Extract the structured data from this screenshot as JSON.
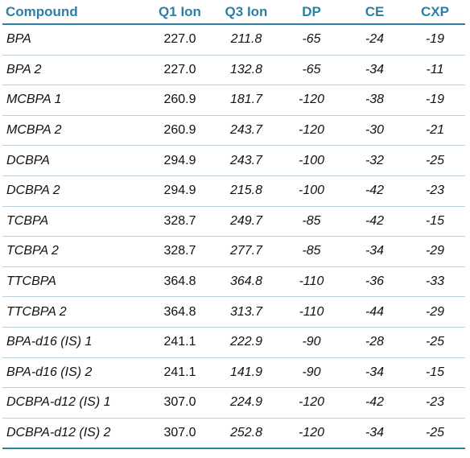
{
  "table": {
    "headers": [
      "Compound",
      "Q1 Ion",
      "Q3 Ion",
      "DP",
      "CE",
      "CXP"
    ],
    "rows": [
      [
        "BPA",
        "227.0",
        "211.8",
        "-65",
        "-24",
        "-19"
      ],
      [
        "BPA 2",
        "227.0",
        "132.8",
        "-65",
        "-34",
        "-11"
      ],
      [
        "MCBPA 1",
        "260.9",
        "181.7",
        "-120",
        "-38",
        "-19"
      ],
      [
        "MCBPA 2",
        "260.9",
        "243.7",
        "-120",
        "-30",
        "-21"
      ],
      [
        "DCBPA",
        "294.9",
        "243.7",
        "-100",
        "-32",
        "-25"
      ],
      [
        "DCBPA 2",
        "294.9",
        "215.8",
        "-100",
        "-42",
        "-23"
      ],
      [
        "TCBPA",
        "328.7",
        "249.7",
        "-85",
        "-42",
        "-15"
      ],
      [
        "TCBPA 2",
        "328.7",
        "277.7",
        "-85",
        "-34",
        "-29"
      ],
      [
        "TTCBPA",
        "364.8",
        "364.8",
        "-110",
        "-36",
        "-33"
      ],
      [
        "TTCBPA 2",
        "364.8",
        "313.7",
        "-110",
        "-44",
        "-29"
      ],
      [
        "BPA-d16 (IS) 1",
        "241.1",
        "222.9",
        "-90",
        "-28",
        "-25"
      ],
      [
        "BPA-d16 (IS) 2",
        "241.1",
        "141.9",
        "-90",
        "-34",
        "-15"
      ],
      [
        "DCBPA-d12 (IS) 1",
        "307.0",
        "224.9",
        "-120",
        "-42",
        "-23"
      ],
      [
        "DCBPA-d12 (IS) 2",
        "307.0",
        "252.8",
        "-120",
        "-34",
        "-25"
      ]
    ]
  },
  "colors": {
    "header_text": "#2e7fa6",
    "rule": "#2e7fa6",
    "row_divider": "#b9cfdb"
  }
}
